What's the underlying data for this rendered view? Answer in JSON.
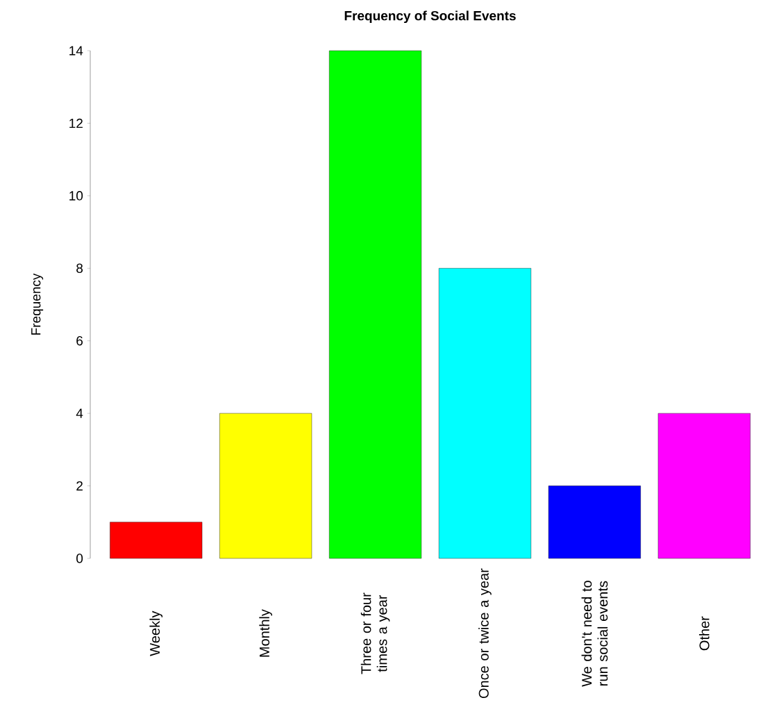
{
  "chart_data": {
    "type": "bar",
    "title": "Frequency of Social Events",
    "ylabel": "Frequency",
    "categories": [
      "Weekly",
      "Monthly",
      "Three or four times a year",
      "Once or twice a year",
      "We don't need to run social events",
      "Other"
    ],
    "values": [
      1,
      4,
      14,
      8,
      2,
      4
    ],
    "colors": [
      "#ff0000",
      "#ffff00",
      "#00ff00",
      "#00ffff",
      "#0000ff",
      "#ff00ff"
    ],
    "ylim": [
      0,
      14
    ],
    "yticks": [
      0,
      2,
      4,
      6,
      8,
      10,
      12,
      14
    ],
    "grid": false
  }
}
